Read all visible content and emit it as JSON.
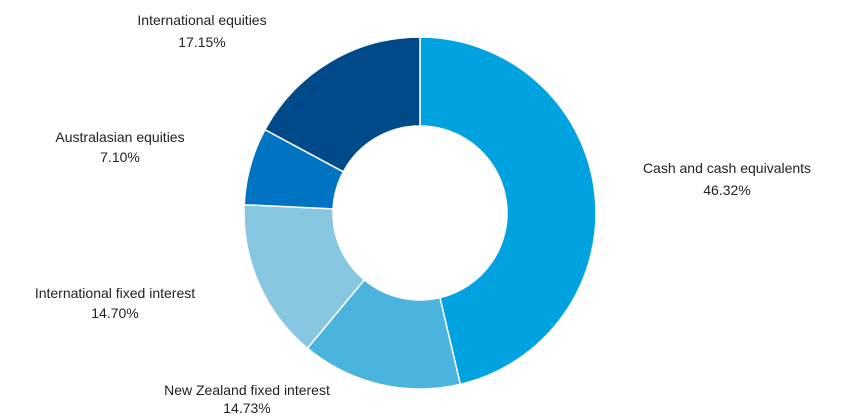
{
  "chart_data": {
    "type": "pie",
    "donut": true,
    "title": "",
    "start_angle_deg": 0,
    "direction": "clockwise",
    "legend": "none",
    "slices": [
      {
        "label": "Cash and cash equivalents",
        "value": 46.32,
        "value_text": "46.32%",
        "color": "#00A3DF"
      },
      {
        "label": "New Zealand fixed interest",
        "value": 14.73,
        "value_text": "14.73%",
        "color": "#4BB4DE"
      },
      {
        "label": "International fixed interest",
        "value": 14.7,
        "value_text": "14.70%",
        "color": "#87C7E2"
      },
      {
        "label": "Australasian equities",
        "value": 7.1,
        "value_text": "7.10%",
        "color": "#0073C2"
      },
      {
        "label": "International equities",
        "value": 17.15,
        "value_text": "17.15%",
        "color": "#004A8A"
      }
    ]
  }
}
